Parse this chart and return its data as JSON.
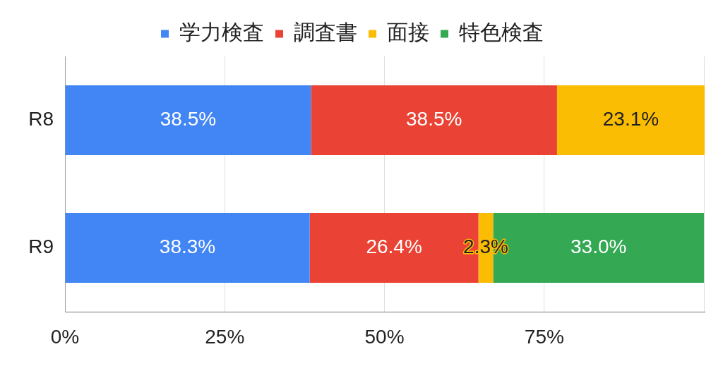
{
  "chart_data": {
    "type": "bar",
    "orientation": "horizontal",
    "stacked": true,
    "categories": [
      "R8",
      "R9"
    ],
    "series": [
      {
        "name": "学力検査",
        "color": "#4285f4",
        "values": [
          38.5,
          38.3
        ],
        "value_labels": [
          "38.5%",
          "38.3%"
        ]
      },
      {
        "name": "調査書",
        "color": "#ea4335",
        "values": [
          38.5,
          26.4
        ],
        "value_labels": [
          "38.5%",
          "26.4%"
        ]
      },
      {
        "name": "面接",
        "color": "#fbbc04",
        "values": [
          23.1,
          2.3
        ],
        "value_labels": [
          "23.1%",
          "2.3%"
        ]
      },
      {
        "name": "特色検査",
        "color": "#34a853",
        "values": [
          null,
          33.0
        ],
        "value_labels": [
          null,
          "33.0%"
        ]
      }
    ],
    "xlim": [
      0,
      100.1
    ],
    "xticks": [
      {
        "value": 0,
        "label": "0%"
      },
      {
        "value": 25,
        "label": "25%"
      },
      {
        "value": 50,
        "label": "50%"
      },
      {
        "value": 75,
        "label": "75%"
      },
      {
        "value": 100,
        "label": null
      }
    ],
    "grid": "x",
    "legend": "top"
  }
}
